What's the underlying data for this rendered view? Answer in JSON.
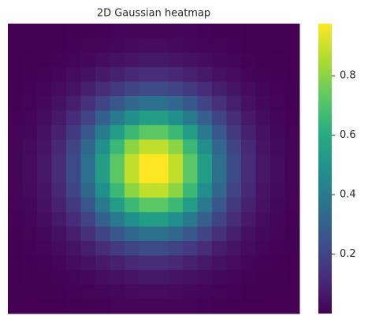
{
  "chart_data": {
    "type": "heatmap",
    "title": "2D Gaussian heatmap",
    "colormap": "viridis",
    "clim": [
      0.0001,
      0.9754
    ],
    "colorbar_ticks": [
      0.2,
      0.4,
      0.6,
      0.8
    ],
    "values": [
      [
        0.0001,
        0.0003,
        0.0007,
        0.0014,
        0.0025,
        0.004,
        0.006,
        0.0081,
        0.0099,
        0.011,
        0.011,
        0.0099,
        0.0081,
        0.006,
        0.004,
        0.0025,
        0.0014,
        0.0007,
        0.0003,
        0.0001
      ],
      [
        0.0003,
        0.0007,
        0.0017,
        0.0033,
        0.006,
        0.0099,
        0.0148,
        0.02,
        0.0244,
        0.027,
        0.027,
        0.0244,
        0.02,
        0.0148,
        0.0099,
        0.006,
        0.0033,
        0.0017,
        0.0007,
        0.0003
      ],
      [
        0.0007,
        0.0017,
        0.0037,
        0.0074,
        0.0134,
        0.022,
        0.0328,
        0.0443,
        0.0541,
        0.0598,
        0.0598,
        0.0541,
        0.0443,
        0.0328,
        0.022,
        0.0134,
        0.0074,
        0.0037,
        0.0017,
        0.0007
      ],
      [
        0.0014,
        0.0033,
        0.0074,
        0.0148,
        0.0269,
        0.0443,
        0.0661,
        0.0891,
        0.1088,
        0.1202,
        0.1202,
        0.1088,
        0.0891,
        0.0661,
        0.0443,
        0.0269,
        0.0148,
        0.0074,
        0.0033,
        0.0014
      ],
      [
        0.0025,
        0.006,
        0.0134,
        0.0269,
        0.049,
        0.0806,
        0.1201,
        0.1621,
        0.1978,
        0.2186,
        0.2186,
        0.1978,
        0.1621,
        0.1201,
        0.0806,
        0.049,
        0.0269,
        0.0134,
        0.006,
        0.0025
      ],
      [
        0.004,
        0.0099,
        0.022,
        0.0443,
        0.0806,
        0.1327,
        0.1978,
        0.2668,
        0.3256,
        0.3598,
        0.3598,
        0.3256,
        0.2668,
        0.1978,
        0.1327,
        0.0806,
        0.0443,
        0.022,
        0.0099,
        0.004
      ],
      [
        0.006,
        0.0148,
        0.0328,
        0.0661,
        0.1201,
        0.1978,
        0.2947,
        0.3976,
        0.4853,
        0.5362,
        0.5362,
        0.4853,
        0.3976,
        0.2947,
        0.1978,
        0.1201,
        0.0661,
        0.0328,
        0.0148,
        0.006
      ],
      [
        0.0081,
        0.02,
        0.0443,
        0.0891,
        0.1621,
        0.2668,
        0.3976,
        0.5363,
        0.6546,
        0.7232,
        0.7232,
        0.6546,
        0.5363,
        0.3976,
        0.2668,
        0.1621,
        0.0891,
        0.0443,
        0.02,
        0.0081
      ],
      [
        0.0099,
        0.0244,
        0.0541,
        0.1088,
        0.1978,
        0.3256,
        0.4853,
        0.6546,
        0.7991,
        0.8828,
        0.8828,
        0.7991,
        0.6546,
        0.4853,
        0.3256,
        0.1978,
        0.1088,
        0.0541,
        0.0244,
        0.0099
      ],
      [
        0.011,
        0.027,
        0.0598,
        0.1202,
        0.2186,
        0.3598,
        0.5362,
        0.7232,
        0.8828,
        0.9754,
        0.9754,
        0.8828,
        0.7232,
        0.5362,
        0.3598,
        0.2186,
        0.1202,
        0.0598,
        0.027,
        0.011
      ],
      [
        0.011,
        0.027,
        0.0598,
        0.1202,
        0.2186,
        0.3598,
        0.5362,
        0.7232,
        0.8828,
        0.9754,
        0.9754,
        0.8828,
        0.7232,
        0.5362,
        0.3598,
        0.2186,
        0.1202,
        0.0598,
        0.027,
        0.011
      ],
      [
        0.0099,
        0.0244,
        0.0541,
        0.1088,
        0.1978,
        0.3256,
        0.4853,
        0.6546,
        0.7991,
        0.8828,
        0.8828,
        0.7991,
        0.6546,
        0.4853,
        0.3256,
        0.1978,
        0.1088,
        0.0541,
        0.0244,
        0.0099
      ],
      [
        0.0081,
        0.02,
        0.0443,
        0.0891,
        0.1621,
        0.2668,
        0.3976,
        0.5363,
        0.6546,
        0.7232,
        0.7232,
        0.6546,
        0.5363,
        0.3976,
        0.2668,
        0.1621,
        0.0891,
        0.0443,
        0.02,
        0.0081
      ],
      [
        0.006,
        0.0148,
        0.0328,
        0.0661,
        0.1201,
        0.1978,
        0.2947,
        0.3976,
        0.4853,
        0.5362,
        0.5362,
        0.4853,
        0.3976,
        0.2947,
        0.1978,
        0.1201,
        0.0661,
        0.0328,
        0.0148,
        0.006
      ],
      [
        0.004,
        0.0099,
        0.022,
        0.0443,
        0.0806,
        0.1327,
        0.1978,
        0.2668,
        0.3256,
        0.3598,
        0.3598,
        0.3256,
        0.2668,
        0.1978,
        0.1327,
        0.0806,
        0.0443,
        0.022,
        0.0099,
        0.004
      ],
      [
        0.0025,
        0.006,
        0.0134,
        0.0269,
        0.049,
        0.0806,
        0.1201,
        0.1621,
        0.1978,
        0.2186,
        0.2186,
        0.1978,
        0.1621,
        0.1201,
        0.0806,
        0.049,
        0.0269,
        0.0134,
        0.006,
        0.0025
      ],
      [
        0.0014,
        0.0033,
        0.0074,
        0.0148,
        0.0269,
        0.0443,
        0.0661,
        0.0891,
        0.1088,
        0.1202,
        0.1202,
        0.1088,
        0.0891,
        0.0661,
        0.0443,
        0.0269,
        0.0148,
        0.0074,
        0.0033,
        0.0014
      ],
      [
        0.0007,
        0.0017,
        0.0037,
        0.0074,
        0.0134,
        0.022,
        0.0328,
        0.0443,
        0.0541,
        0.0598,
        0.0598,
        0.0541,
        0.0443,
        0.0328,
        0.022,
        0.0134,
        0.0074,
        0.0037,
        0.0017,
        0.0007
      ],
      [
        0.0003,
        0.0007,
        0.0017,
        0.0033,
        0.006,
        0.0099,
        0.0148,
        0.02,
        0.0244,
        0.027,
        0.027,
        0.0244,
        0.02,
        0.0148,
        0.0099,
        0.006,
        0.0033,
        0.0017,
        0.0007,
        0.0003
      ],
      [
        0.0001,
        0.0003,
        0.0007,
        0.0014,
        0.0025,
        0.004,
        0.006,
        0.0081,
        0.0099,
        0.011,
        0.011,
        0.0099,
        0.0081,
        0.006,
        0.004,
        0.0025,
        0.0014,
        0.0007,
        0.0003,
        0.0001
      ]
    ]
  }
}
